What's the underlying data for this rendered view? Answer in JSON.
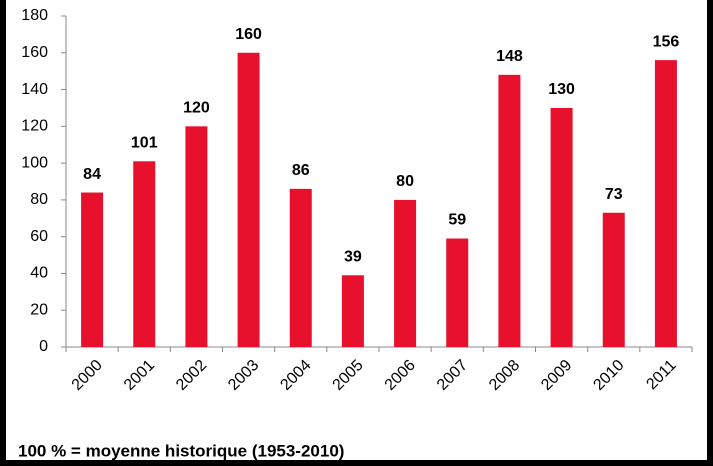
{
  "chart_data": {
    "type": "bar",
    "categories": [
      "2000",
      "2001",
      "2002",
      "2003",
      "2004",
      "2005",
      "2006",
      "2007",
      "2008",
      "2009",
      "2010",
      "2011"
    ],
    "values": [
      84,
      101,
      120,
      160,
      86,
      39,
      80,
      59,
      148,
      130,
      73,
      156
    ],
    "color": "#e8112d",
    "ylim": [
      0,
      180
    ],
    "yticks": [
      0,
      20,
      40,
      60,
      80,
      100,
      120,
      140,
      160,
      180
    ],
    "grid": false,
    "annotation": "100 % = moyenne historique (1953-2010)"
  }
}
